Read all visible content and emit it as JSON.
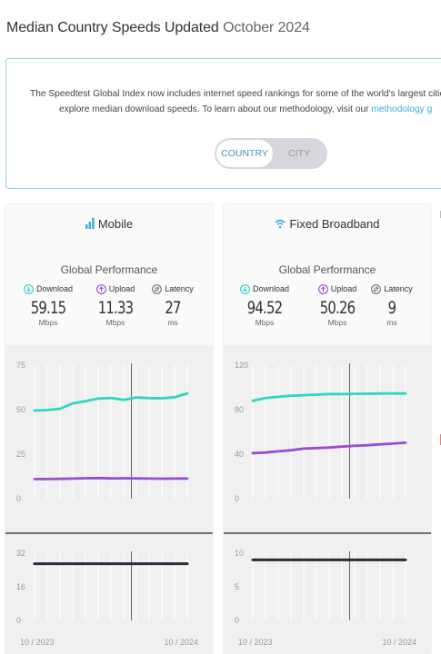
{
  "header": {
    "title": "Median Country Speeds Updated",
    "month": "October 2024"
  },
  "info": {
    "line1": "The Speedtest Global Index now includes internet speed rankings for some of the world's largest cities. Use",
    "line2": "explore median download speeds. To learn about our methodology, visit our",
    "link": "methodology g"
  },
  "toggle": {
    "country": "COUNTRY",
    "city": "CITY",
    "selected": "COUNTRY"
  },
  "colors": {
    "download": "#2fd5c6",
    "upload": "#9b4dd1",
    "latency": "#2a2a3a",
    "accent": "#3aaed8"
  },
  "panels": {
    "mobile": {
      "title": "Mobile",
      "icon": "signal-bars-icon",
      "global_label": "Global Performance",
      "metrics": {
        "download": {
          "label": "Download",
          "value": "59.15",
          "unit": "Mbps"
        },
        "upload": {
          "label": "Upload",
          "value": "11.33",
          "unit": "Mbps"
        },
        "latency": {
          "label": "Latency",
          "value": "27",
          "unit": "ms"
        }
      }
    },
    "fixed": {
      "title": "Fixed Broadband",
      "icon": "wifi-icon",
      "global_label": "Global Performance",
      "metrics": {
        "download": {
          "label": "Download",
          "value": "94.52",
          "unit": "Mbps"
        },
        "upload": {
          "label": "Upload",
          "value": "50.26",
          "unit": "Mbps"
        },
        "latency": {
          "label": "Latency",
          "value": "9",
          "unit": "ms"
        }
      }
    }
  },
  "chart_data": [
    {
      "type": "line",
      "panel": "mobile",
      "role": "speed",
      "x_start_label": "10 / 2023",
      "x_end_label": "10 / 2024",
      "ylim": [
        0,
        75
      ],
      "yticks": [
        "0",
        "25",
        "50",
        "75"
      ],
      "series": [
        {
          "name": "Download",
          "values": [
            49.5,
            49.8,
            50.5,
            53.5,
            54.8,
            56.2,
            56.6,
            55.5,
            56.9,
            56.5,
            56.4,
            57.0,
            59.15
          ]
        },
        {
          "name": "Upload",
          "values": [
            11.0,
            11.0,
            11.1,
            11.3,
            11.5,
            11.6,
            11.4,
            11.5,
            11.4,
            11.3,
            11.2,
            11.3,
            11.33
          ]
        }
      ]
    },
    {
      "type": "line",
      "panel": "mobile",
      "role": "latency",
      "ylim": [
        0,
        32
      ],
      "yticks": [
        "0",
        "16",
        "32"
      ],
      "series": [
        {
          "name": "Latency",
          "values": [
            27,
            27,
            27,
            27,
            27,
            27,
            27,
            27,
            27,
            27,
            27,
            27,
            27
          ]
        }
      ]
    },
    {
      "type": "line",
      "panel": "fixed",
      "role": "speed",
      "x_start_label": "10 / 2023",
      "x_end_label": "10 / 2024",
      "ylim": [
        0,
        120
      ],
      "yticks": [
        "0",
        "40",
        "80",
        "120"
      ],
      "series": [
        {
          "name": "Download",
          "values": [
            88,
            90.5,
            91.5,
            92.5,
            93,
            93.5,
            94,
            94,
            94.2,
            94.3,
            94.5,
            94.6,
            94.52
          ]
        },
        {
          "name": "Upload",
          "values": [
            41,
            41.5,
            42.5,
            43.5,
            45,
            45.5,
            46,
            46.8,
            47.5,
            48,
            48.8,
            49.5,
            50.26
          ]
        }
      ]
    },
    {
      "type": "line",
      "panel": "fixed",
      "role": "latency",
      "ylim": [
        0,
        10
      ],
      "yticks": [
        "0",
        "5",
        "10"
      ],
      "series": [
        {
          "name": "Latency",
          "values": [
            9,
            9,
            9,
            9,
            9,
            9,
            9,
            9,
            9,
            9,
            9,
            9,
            9
          ]
        }
      ]
    }
  ]
}
